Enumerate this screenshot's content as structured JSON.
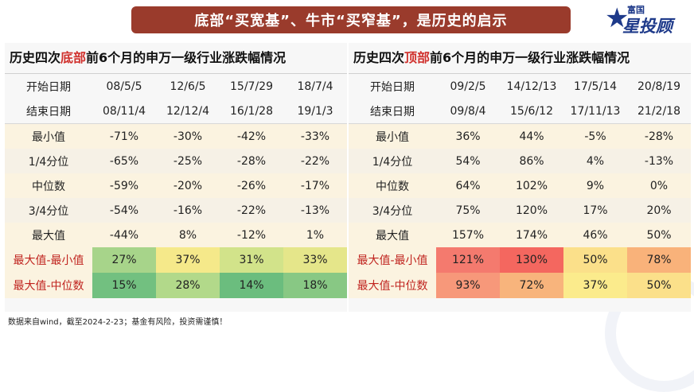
{
  "title": "底部“买宽基”、牛市“买窄基”，是历史的启示",
  "logo": {
    "small": "富国",
    "big": "星投顾",
    "icon": "star-icon"
  },
  "footnote": "数据来自wind，截至2024-2-23；基金有风险，投资需谨慎！",
  "colors": {
    "banner": "#9a3b2c",
    "highlight": "#d0312d",
    "brand": "#1e3a8a"
  },
  "chart_data": [
    {
      "type": "table",
      "title_parts": [
        "历史四次",
        "底部",
        "前6个月的申万一级行业涨跌幅情况"
      ],
      "header_rows": [
        {
          "label": "开始日期",
          "values": [
            "08/5/5",
            "12/6/5",
            "15/7/29",
            "18/7/4"
          ]
        },
        {
          "label": "结束日期",
          "values": [
            "08/11/4",
            "12/12/4",
            "16/1/28",
            "19/1/3"
          ]
        }
      ],
      "rows": [
        {
          "label": "最小值",
          "values": [
            "-71%",
            "-30%",
            "-42%",
            "-33%"
          ]
        },
        {
          "label": "1/4分位",
          "values": [
            "-65%",
            "-25%",
            "-28%",
            "-22%"
          ]
        },
        {
          "label": "中位数",
          "values": [
            "-59%",
            "-20%",
            "-26%",
            "-17%"
          ]
        },
        {
          "label": "3/4分位",
          "values": [
            "-54%",
            "-16%",
            "-22%",
            "-13%"
          ]
        },
        {
          "label": "最大值",
          "values": [
            "-44%",
            "8%",
            "-12%",
            "1%"
          ]
        }
      ],
      "heat_rows": [
        {
          "label": "最大值-最小值",
          "values": [
            "27%",
            "37%",
            "31%",
            "33%"
          ],
          "colors": [
            "#a7d48a",
            "#f5e98a",
            "#d2e38a",
            "#e5e68a"
          ]
        },
        {
          "label": "最大值-中位数",
          "values": [
            "15%",
            "28%",
            "14%",
            "18%"
          ],
          "colors": [
            "#72c080",
            "#b2d98a",
            "#6bbd7e",
            "#88c884"
          ]
        }
      ]
    },
    {
      "type": "table",
      "title_parts": [
        "历史四次",
        "顶部",
        "前6个月的申万一级行业涨跌幅情况"
      ],
      "header_rows": [
        {
          "label": "开始日期",
          "values": [
            "09/2/5",
            "14/12/13",
            "17/5/14",
            "20/8/19"
          ]
        },
        {
          "label": "结束日期",
          "values": [
            "09/8/4",
            "15/6/12",
            "17/11/13",
            "21/2/18"
          ]
        }
      ],
      "rows": [
        {
          "label": "最小值",
          "values": [
            "36%",
            "44%",
            "-5%",
            "-28%"
          ]
        },
        {
          "label": "1/4分位",
          "values": [
            "54%",
            "86%",
            "4%",
            "-13%"
          ]
        },
        {
          "label": "中位数",
          "values": [
            "64%",
            "102%",
            "9%",
            "0%"
          ]
        },
        {
          "label": "3/4分位",
          "values": [
            "75%",
            "120%",
            "17%",
            "20%"
          ]
        },
        {
          "label": "最大值",
          "values": [
            "157%",
            "174%",
            "46%",
            "50%"
          ]
        }
      ],
      "heat_rows": [
        {
          "label": "最大值-最小值",
          "values": [
            "121%",
            "130%",
            "50%",
            "78%"
          ],
          "colors": [
            "#f47a6e",
            "#f4675f",
            "#fbe08a",
            "#f9b27a"
          ]
        },
        {
          "label": "最大值-中位数",
          "values": [
            "93%",
            "72%",
            "37%",
            "50%"
          ],
          "colors": [
            "#f7987a",
            "#f8b47c",
            "#fbeb8c",
            "#fbe08a"
          ]
        }
      ]
    }
  ]
}
